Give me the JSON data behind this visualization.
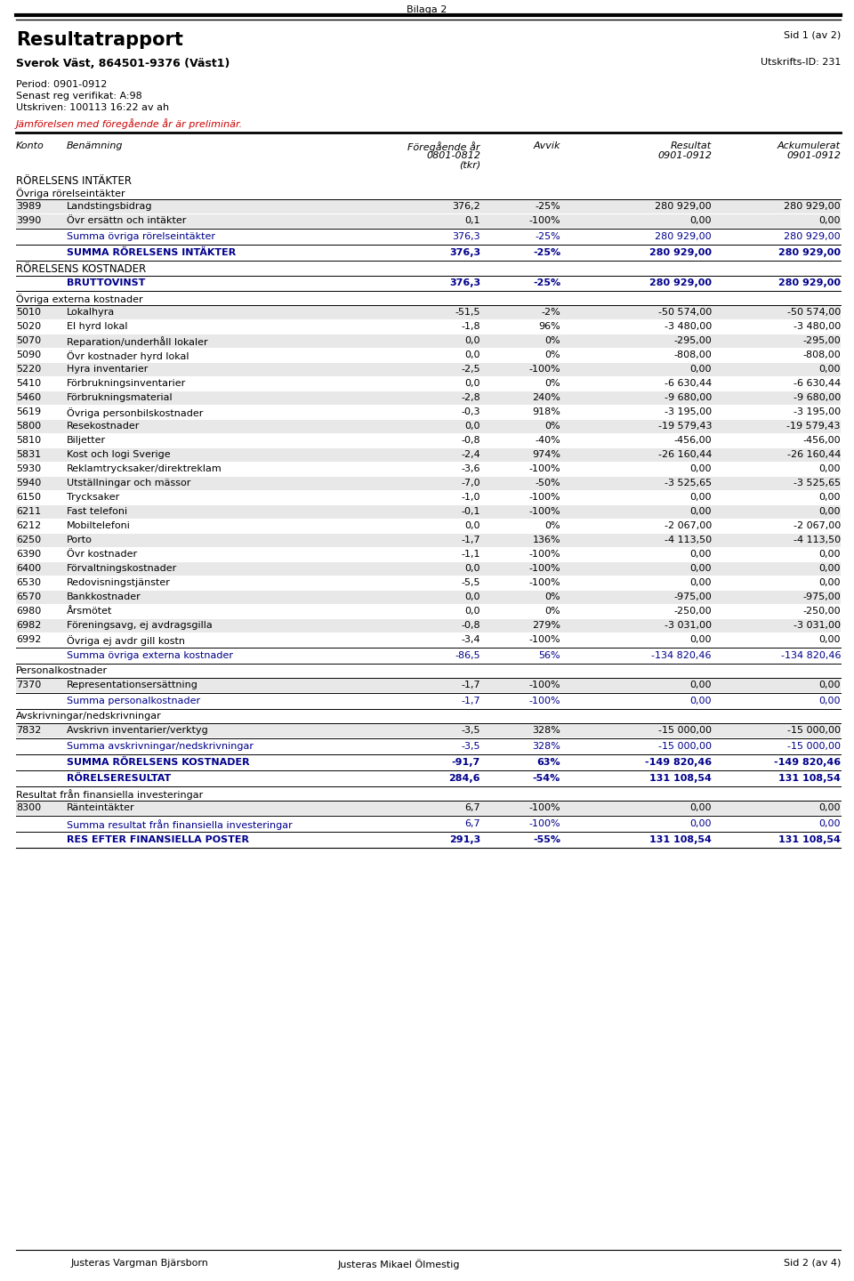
{
  "bilaga": "Bilaga 2",
  "title": "Resultatrapport",
  "page_info": "Sid 1 (av 2)",
  "company": "Sverok Väst, 864501-9376 (Väst1)",
  "print_id": "Utskrifts-ID: 231",
  "period_info": [
    "Period: 0901-0912",
    "Senast reg verifikat: A:98",
    "Utskriven: 100113 16:22 av ah"
  ],
  "preliminary_note": "Jämförelsen med föregående år är preliminär.",
  "rows": [
    {
      "konto": "3989",
      "ben": "Landstingsbidrag",
      "foreg": "376,2",
      "avvik": "-25%",
      "resultat": "280 929,00",
      "ackum": "280 929,00",
      "type": "data",
      "shaded": true
    },
    {
      "konto": "3990",
      "ben": "Övr ersättn och intäkter",
      "foreg": "0,1",
      "avvik": "-100%",
      "resultat": "0,00",
      "ackum": "0,00",
      "type": "data",
      "shaded": true
    },
    {
      "konto": "",
      "ben": "Summa övriga rörelseintäkter",
      "foreg": "376,3",
      "avvik": "-25%",
      "resultat": "280 929,00",
      "ackum": "280 929,00",
      "type": "summa_blue"
    },
    {
      "konto": "",
      "ben": "SUMMA RÖRELSENS INTÄKTER",
      "foreg": "376,3",
      "avvik": "-25%",
      "resultat": "280 929,00",
      "ackum": "280 929,00",
      "type": "summa_blue_bold"
    },
    {
      "konto": "",
      "ben": "BRUTTOVINST",
      "foreg": "376,3",
      "avvik": "-25%",
      "resultat": "280 929,00",
      "ackum": "280 929,00",
      "type": "summa_blue_bold"
    },
    {
      "konto": "5010",
      "ben": "Lokalhyra",
      "foreg": "-51,5",
      "avvik": "-2%",
      "resultat": "-50 574,00",
      "ackum": "-50 574,00",
      "type": "data",
      "shaded": true
    },
    {
      "konto": "5020",
      "ben": "El hyrd lokal",
      "foreg": "-1,8",
      "avvik": "96%",
      "resultat": "-3 480,00",
      "ackum": "-3 480,00",
      "type": "data",
      "shaded": false
    },
    {
      "konto": "5070",
      "ben": "Reparation/underhåll lokaler",
      "foreg": "0,0",
      "avvik": "0%",
      "resultat": "-295,00",
      "ackum": "-295,00",
      "type": "data",
      "shaded": true
    },
    {
      "konto": "5090",
      "ben": "Övr kostnader hyrd lokal",
      "foreg": "0,0",
      "avvik": "0%",
      "resultat": "-808,00",
      "ackum": "-808,00",
      "type": "data",
      "shaded": false
    },
    {
      "konto": "5220",
      "ben": "Hyra inventarier",
      "foreg": "-2,5",
      "avvik": "-100%",
      "resultat": "0,00",
      "ackum": "0,00",
      "type": "data",
      "shaded": true
    },
    {
      "konto": "5410",
      "ben": "Förbrukningsinventarier",
      "foreg": "0,0",
      "avvik": "0%",
      "resultat": "-6 630,44",
      "ackum": "-6 630,44",
      "type": "data",
      "shaded": false
    },
    {
      "konto": "5460",
      "ben": "Förbrukningsmaterial",
      "foreg": "-2,8",
      "avvik": "240%",
      "resultat": "-9 680,00",
      "ackum": "-9 680,00",
      "type": "data",
      "shaded": true
    },
    {
      "konto": "5619",
      "ben": "Övriga personbilskostnader",
      "foreg": "-0,3",
      "avvik": "918%",
      "resultat": "-3 195,00",
      "ackum": "-3 195,00",
      "type": "data",
      "shaded": false
    },
    {
      "konto": "5800",
      "ben": "Resekostnader",
      "foreg": "0,0",
      "avvik": "0%",
      "resultat": "-19 579,43",
      "ackum": "-19 579,43",
      "type": "data",
      "shaded": true
    },
    {
      "konto": "5810",
      "ben": "Biljetter",
      "foreg": "-0,8",
      "avvik": "-40%",
      "resultat": "-456,00",
      "ackum": "-456,00",
      "type": "data",
      "shaded": false
    },
    {
      "konto": "5831",
      "ben": "Kost och logi Sverige",
      "foreg": "-2,4",
      "avvik": "974%",
      "resultat": "-26 160,44",
      "ackum": "-26 160,44",
      "type": "data",
      "shaded": true
    },
    {
      "konto": "5930",
      "ben": "Reklamtrycksaker/direktreklam",
      "foreg": "-3,6",
      "avvik": "-100%",
      "resultat": "0,00",
      "ackum": "0,00",
      "type": "data",
      "shaded": false
    },
    {
      "konto": "5940",
      "ben": "Utställningar och mässor",
      "foreg": "-7,0",
      "avvik": "-50%",
      "resultat": "-3 525,65",
      "ackum": "-3 525,65",
      "type": "data",
      "shaded": true
    },
    {
      "konto": "6150",
      "ben": "Trycksaker",
      "foreg": "-1,0",
      "avvik": "-100%",
      "resultat": "0,00",
      "ackum": "0,00",
      "type": "data",
      "shaded": false
    },
    {
      "konto": "6211",
      "ben": "Fast telefoni",
      "foreg": "-0,1",
      "avvik": "-100%",
      "resultat": "0,00",
      "ackum": "0,00",
      "type": "data",
      "shaded": true
    },
    {
      "konto": "6212",
      "ben": "Mobiltelefoni",
      "foreg": "0,0",
      "avvik": "0%",
      "resultat": "-2 067,00",
      "ackum": "-2 067,00",
      "type": "data",
      "shaded": false
    },
    {
      "konto": "6250",
      "ben": "Porto",
      "foreg": "-1,7",
      "avvik": "136%",
      "resultat": "-4 113,50",
      "ackum": "-4 113,50",
      "type": "data",
      "shaded": true
    },
    {
      "konto": "6390",
      "ben": "Övr kostnader",
      "foreg": "-1,1",
      "avvik": "-100%",
      "resultat": "0,00",
      "ackum": "0,00",
      "type": "data",
      "shaded": false
    },
    {
      "konto": "6400",
      "ben": "Förvaltningskostnader",
      "foreg": "0,0",
      "avvik": "-100%",
      "resultat": "0,00",
      "ackum": "0,00",
      "type": "data",
      "shaded": true
    },
    {
      "konto": "6530",
      "ben": "Redovisningstjänster",
      "foreg": "-5,5",
      "avvik": "-100%",
      "resultat": "0,00",
      "ackum": "0,00",
      "type": "data",
      "shaded": false
    },
    {
      "konto": "6570",
      "ben": "Bankkostnader",
      "foreg": "0,0",
      "avvik": "0%",
      "resultat": "-975,00",
      "ackum": "-975,00",
      "type": "data",
      "shaded": true
    },
    {
      "konto": "6980",
      "ben": "Årsmötet",
      "foreg": "0,0",
      "avvik": "0%",
      "resultat": "-250,00",
      "ackum": "-250,00",
      "type": "data",
      "shaded": false
    },
    {
      "konto": "6982",
      "ben": "Föreningsavg, ej avdragsgilla",
      "foreg": "-0,8",
      "avvik": "279%",
      "resultat": "-3 031,00",
      "ackum": "-3 031,00",
      "type": "data",
      "shaded": true
    },
    {
      "konto": "6992",
      "ben": "Övriga ej avdr gill kostn",
      "foreg": "-3,4",
      "avvik": "-100%",
      "resultat": "0,00",
      "ackum": "0,00",
      "type": "data",
      "shaded": false
    },
    {
      "konto": "",
      "ben": "Summa övriga externa kostnader",
      "foreg": "-86,5",
      "avvik": "56%",
      "resultat": "-134 820,46",
      "ackum": "-134 820,46",
      "type": "summa_blue"
    },
    {
      "konto": "7370",
      "ben": "Representationsersättning",
      "foreg": "-1,7",
      "avvik": "-100%",
      "resultat": "0,00",
      "ackum": "0,00",
      "type": "data",
      "shaded": true
    },
    {
      "konto": "",
      "ben": "Summa personalkostnader",
      "foreg": "-1,7",
      "avvik": "-100%",
      "resultat": "0,00",
      "ackum": "0,00",
      "type": "summa_blue"
    },
    {
      "konto": "7832",
      "ben": "Avskrivn inventarier/verktyg",
      "foreg": "-3,5",
      "avvik": "328%",
      "resultat": "-15 000,00",
      "ackum": "-15 000,00",
      "type": "data",
      "shaded": true
    },
    {
      "konto": "",
      "ben": "Summa avskrivningar/nedskrivningar",
      "foreg": "-3,5",
      "avvik": "328%",
      "resultat": "-15 000,00",
      "ackum": "-15 000,00",
      "type": "summa_blue"
    },
    {
      "konto": "",
      "ben": "SUMMA RÖRELSENS KOSTNADER",
      "foreg": "-91,7",
      "avvik": "63%",
      "resultat": "-149 820,46",
      "ackum": "-149 820,46",
      "type": "summa_blue_bold"
    },
    {
      "konto": "",
      "ben": "RÖRELSERESULTAT",
      "foreg": "284,6",
      "avvik": "-54%",
      "resultat": "131 108,54",
      "ackum": "131 108,54",
      "type": "summa_blue_bold"
    },
    {
      "konto": "8300",
      "ben": "Ränteintäkter",
      "foreg": "6,7",
      "avvik": "-100%",
      "resultat": "0,00",
      "ackum": "0,00",
      "type": "data",
      "shaded": true
    },
    {
      "konto": "",
      "ben": "Summa resultat från finansiella investeringar",
      "foreg": "6,7",
      "avvik": "-100%",
      "resultat": "0,00",
      "ackum": "0,00",
      "type": "summa_blue"
    },
    {
      "konto": "",
      "ben": "RES EFTER FINANSIELLA POSTER",
      "foreg": "291,3",
      "avvik": "-55%",
      "resultat": "131 108,54",
      "ackum": "131 108,54",
      "type": "summa_blue_bold"
    }
  ],
  "section_labels": [
    "RÖRELSENS INTÄKTER",
    "Övriga rörelseintäkter",
    "RÖRELSENS KOSTNADER",
    "Övriga externa kostnader",
    "Personalkostnader",
    "Avskrivningar/nedskrivningar",
    "Resultat från finansiella investeringar"
  ],
  "footer_left": "Justeras Vargman Bjärsborn",
  "footer_center": "Justeras Mikael Ölmestig",
  "footer_right": "Sid 2 (av 4)",
  "colors": {
    "blue": "#0000CD",
    "dark_blue": "#00008B",
    "red": "#CC0000",
    "black": "#000000",
    "shaded_bg": "#E8E8E8",
    "white": "#FFFFFF"
  }
}
